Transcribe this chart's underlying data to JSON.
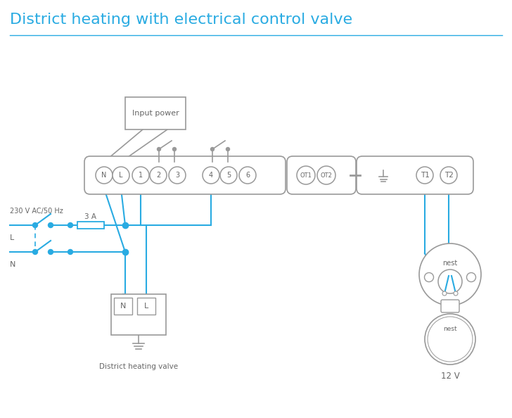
{
  "title": "District heating with electrical control valve",
  "title_color": "#29abe2",
  "title_fontsize": 16,
  "bg_color": "#ffffff",
  "wire_color": "#29abe2",
  "gray": "#999999",
  "dark_gray": "#666666",
  "terminal_labels_main": [
    "N",
    "L",
    "1",
    "2",
    "3",
    "4",
    "5",
    "6"
  ],
  "ot_labels": [
    "OT1",
    "OT2"
  ],
  "t_labels": [
    "T1",
    "T2"
  ],
  "input_power_label": "Input power",
  "district_valve_label": "District heating valve",
  "voltage_label": "230 V AC/50 Hz",
  "fuse_label": "3 A",
  "L_label": "L",
  "N_label": "N",
  "twelve_v_label": "12 V",
  "nest_label": "nest"
}
